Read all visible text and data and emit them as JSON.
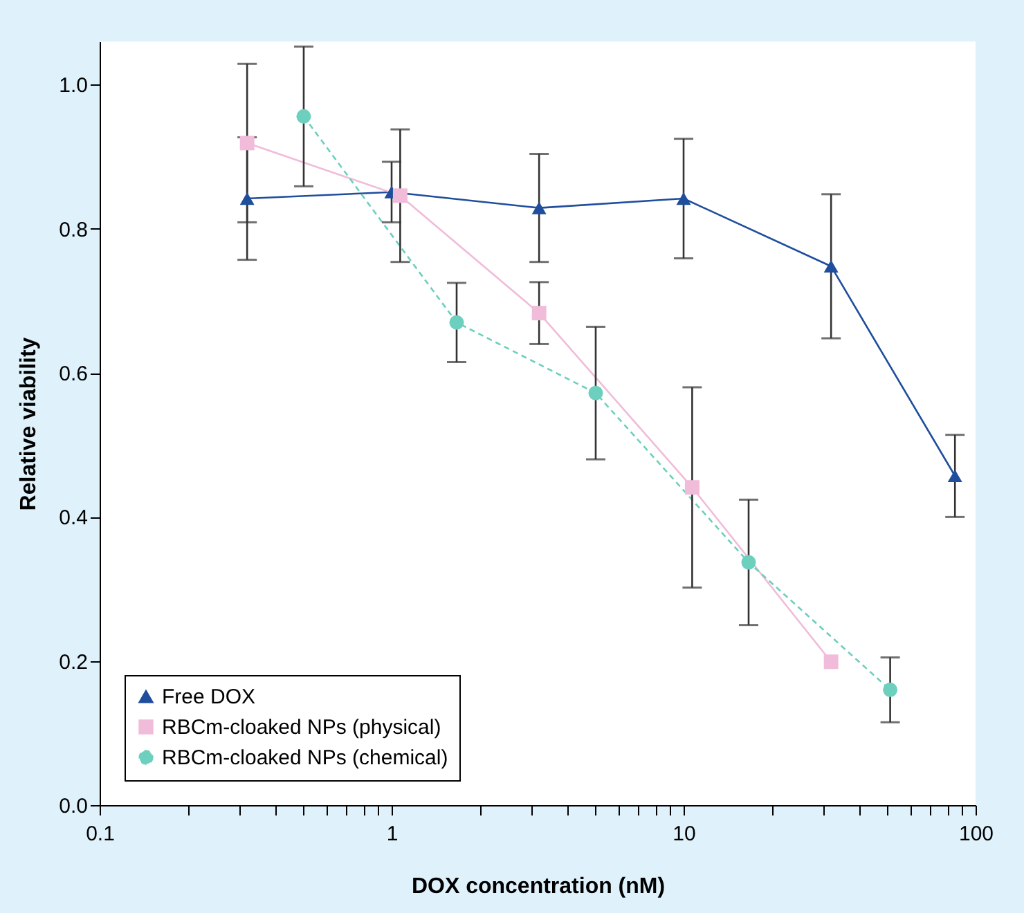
{
  "chart_data": {
    "type": "line",
    "xlabel": "DOX concentration (nM)",
    "ylabel": "Relative viability",
    "log": "x",
    "xlim": [
      0.1,
      100
    ],
    "ylim": [
      0,
      1.06
    ],
    "xticks": [
      0.1,
      {
        "value": 0.2,
        "label": null
      },
      {
        "value": 0.3,
        "label": null
      },
      {
        "value": 0.4,
        "label": null
      },
      {
        "value": 0.5,
        "label": null
      },
      {
        "value": 0.6,
        "label": null
      },
      {
        "value": 0.7,
        "label": null
      },
      {
        "value": 0.8,
        "label": null
      },
      {
        "value": 0.9,
        "label": null
      },
      1,
      {
        "value": 2,
        "label": null
      },
      {
        "value": 3,
        "label": null
      },
      {
        "value": 4,
        "label": null
      },
      {
        "value": 5,
        "label": null
      },
      {
        "value": 6,
        "label": null
      },
      {
        "value": 7,
        "label": null
      },
      {
        "value": 8,
        "label": null
      },
      {
        "value": 9,
        "label": null
      },
      10,
      {
        "value": 20,
        "label": null
      },
      {
        "value": 30,
        "label": null
      },
      {
        "value": 40,
        "label": null
      },
      {
        "value": 50,
        "label": null
      },
      {
        "value": 60,
        "label": null
      },
      {
        "value": 70,
        "label": null
      },
      {
        "value": 80,
        "label": null
      },
      {
        "value": 90,
        "label": null
      },
      100
    ],
    "yticks": [
      {
        "value": 0,
        "label": "0.0"
      },
      0.2,
      0.4,
      0.6,
      0.8,
      {
        "value": 1,
        "label": "1.0"
      }
    ],
    "grid": false,
    "legend": "bottom left",
    "series": [
      {
        "name": "Free DOX",
        "color": "#1f4e9c",
        "marker": "triangle",
        "line_style": "solid",
        "x": [
          0.32,
          1.0,
          3.2,
          10,
          32,
          85
        ],
        "values": [
          0.842,
          0.851,
          0.829,
          0.842,
          0.748,
          0.457
        ],
        "errors": [
          0.085,
          0.042,
          0.075,
          0.083,
          0.1,
          0.057
        ]
      },
      {
        "name": "RBCm-cloaked NPs (physical)",
        "color": "#f0bcd9",
        "marker": "square",
        "line_style": "solid",
        "x": [
          0.32,
          1.07,
          3.2,
          10.7,
          32
        ],
        "values": [
          0.919,
          0.846,
          0.683,
          0.441,
          0.199
        ],
        "errors": [
          0.11,
          0.092,
          0.043,
          0.139,
          null
        ]
      },
      {
        "name": "RBCm-cloaked NPs (chemical)",
        "color": "#6dcfbd",
        "marker": "circle",
        "line_style": "dashed",
        "x": [
          0.5,
          1.67,
          5.0,
          16.7,
          51
        ],
        "values": [
          0.956,
          0.67,
          0.572,
          0.337,
          0.16
        ],
        "errors": [
          0.097,
          0.055,
          0.092,
          0.087,
          0.045
        ]
      }
    ]
  }
}
